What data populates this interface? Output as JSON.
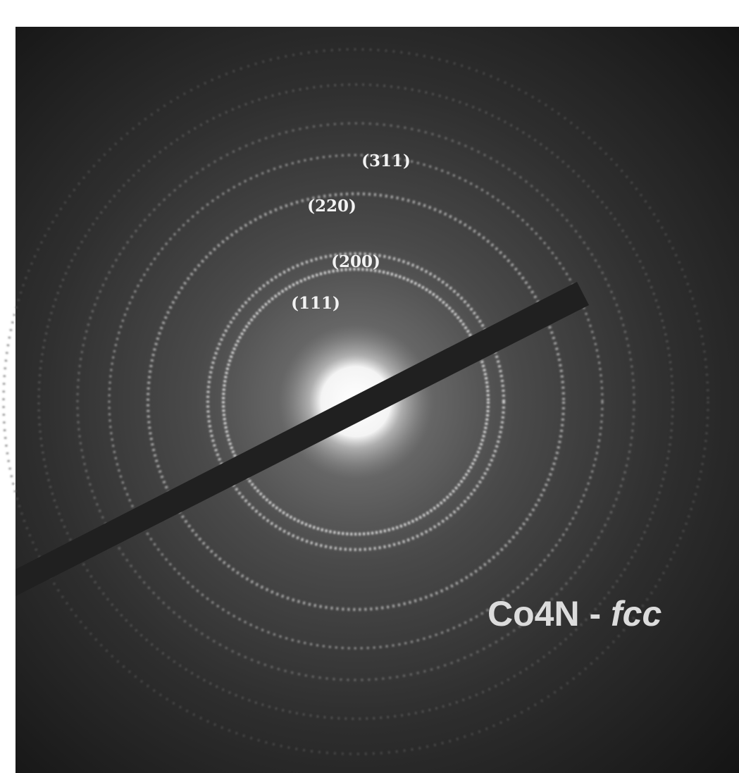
{
  "ring_labels": [
    "(311)",
    "(220)",
    "(200)",
    "(111)"
  ],
  "phase_label": {
    "text": "Co4N - ",
    "italic": "fcc"
  }
}
